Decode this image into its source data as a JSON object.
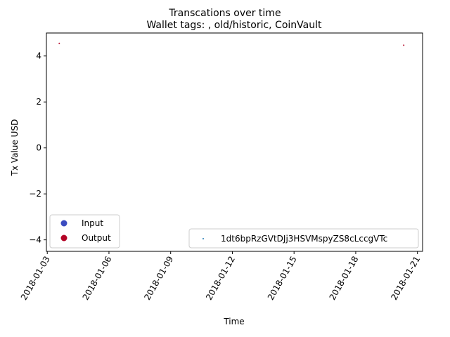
{
  "chart_data": {
    "type": "scatter",
    "suptitle": "Transcations over time",
    "title": "Wallet tags: , old/historic, CoinVault",
    "xlabel": "Time",
    "ylabel": "Tx Value USD",
    "x_ticks": [
      "2018-01-03",
      "2018-01-06",
      "2018-01-09",
      "2018-01-12",
      "2018-01-15",
      "2018-01-18",
      "2018-01-21"
    ],
    "y_ticks": [
      -4,
      -2,
      0,
      2,
      4
    ],
    "xlim": [
      "2018-01-02T23:00",
      "2018-01-21T06:00"
    ],
    "ylim": [
      -4.5,
      5.0
    ],
    "grid": false,
    "series": [
      {
        "name": "1dt6bpRzGVtDJj3HSVMspyZS8cLccgVTc",
        "points": [
          {
            "x": "2018-01-03T14:00",
            "y": 4.55,
            "kind": "Output"
          },
          {
            "x": "2018-01-20T08:00",
            "y": 4.47,
            "kind": "Output"
          }
        ]
      }
    ],
    "legend_type": {
      "placement": "lower-left",
      "entries": [
        {
          "label": "Input",
          "color": "#3b4cc0"
        },
        {
          "label": "Output",
          "color": "#b40426"
        }
      ]
    },
    "legend_wallet": {
      "placement": "lower-right",
      "label": "1dt6bpRzGVtDJj3HSVMspyZS8cLccgVTc",
      "color": "#1f77b4"
    }
  }
}
